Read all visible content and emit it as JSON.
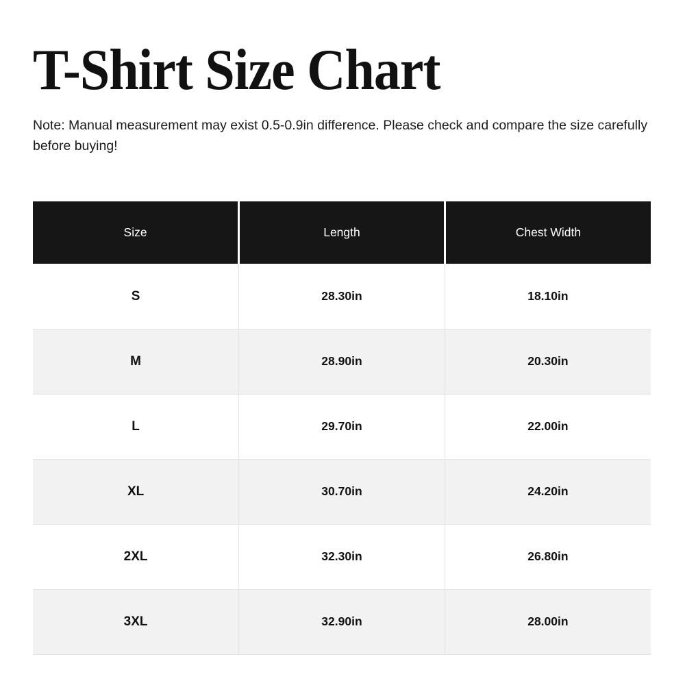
{
  "page": {
    "title": "T-Shirt Size Chart",
    "note": "Note: Manual measurement may exist 0.5-0.9in difference. Please check and compare the size carefully before buying!"
  },
  "table": {
    "columns": [
      "Size",
      "Length",
      "Chest Width"
    ],
    "rows": [
      {
        "size": "S",
        "length": "28.30in",
        "chest_width": "18.10in"
      },
      {
        "size": "M",
        "length": "28.90in",
        "chest_width": "20.30in"
      },
      {
        "size": "L",
        "length": "29.70in",
        "chest_width": "22.00in"
      },
      {
        "size": "XL",
        "length": "30.70in",
        "chest_width": "24.20in"
      },
      {
        "size": "2XL",
        "length": "32.30in",
        "chest_width": "26.80in"
      },
      {
        "size": "3XL",
        "length": "32.90in",
        "chest_width": "28.00in"
      }
    ]
  },
  "chart_data": {
    "type": "table",
    "title": "T-Shirt Size Chart",
    "categories": [
      "S",
      "M",
      "L",
      "XL",
      "2XL",
      "3XL"
    ],
    "series": [
      {
        "name": "Length (in)",
        "values": [
          28.3,
          28.9,
          29.7,
          30.7,
          32.3,
          32.9
        ]
      },
      {
        "name": "Chest Width (in)",
        "values": [
          18.1,
          20.3,
          22.0,
          24.2,
          26.8,
          28.0
        ]
      }
    ]
  },
  "colors": {
    "header_bg": "#161616",
    "header_text": "#ffffff",
    "row_alt_bg": "#f2f2f2",
    "border": "#e3e3e3",
    "text": "#111111"
  }
}
